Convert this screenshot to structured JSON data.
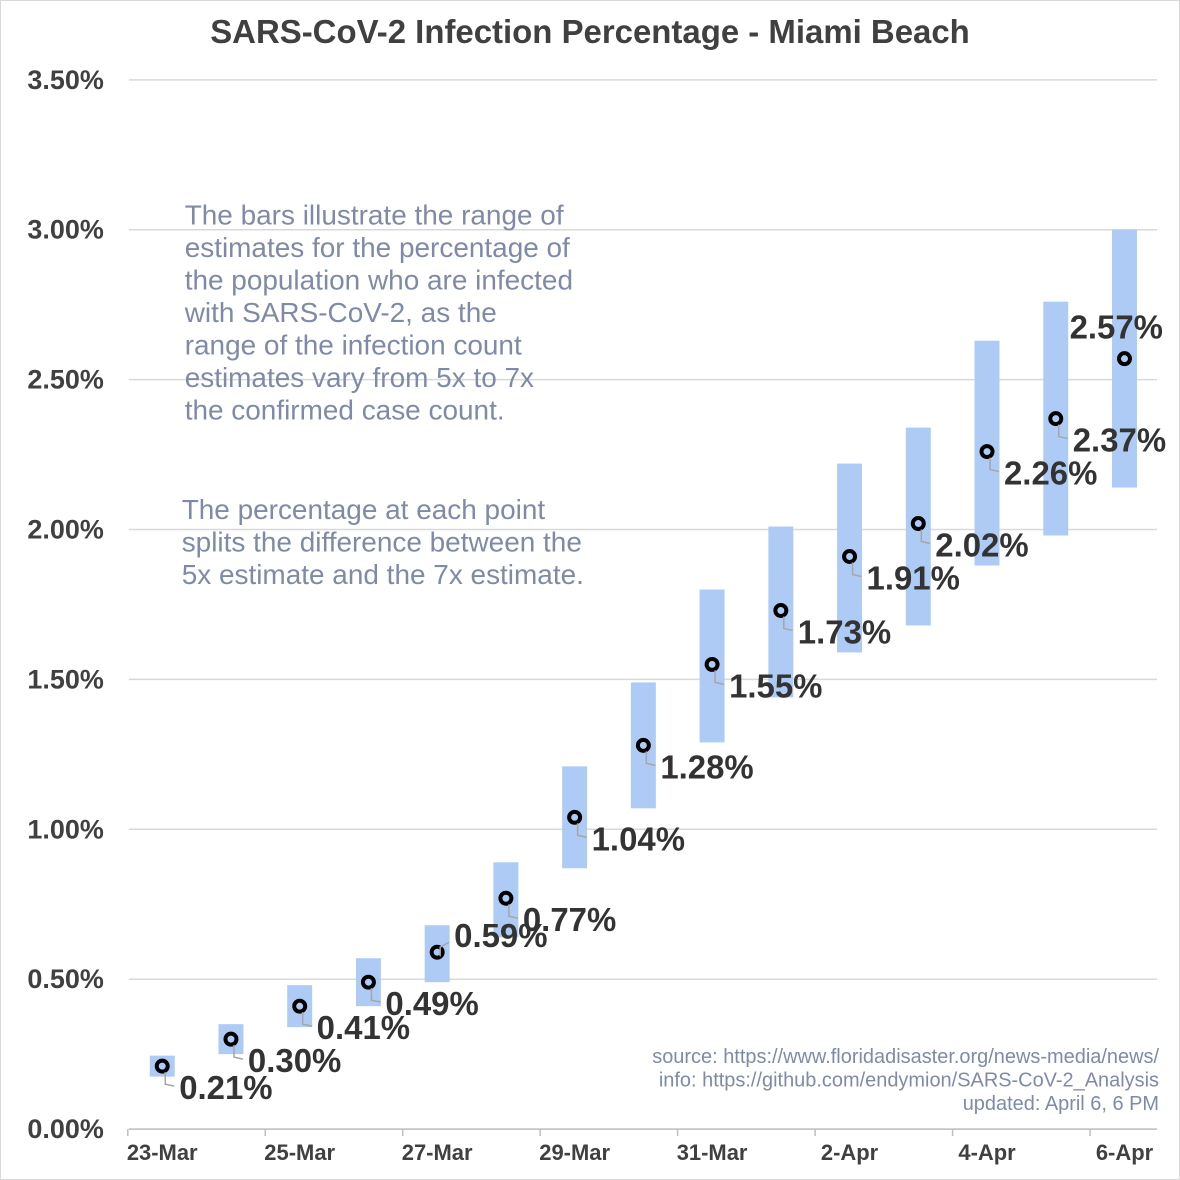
{
  "chart_data": {
    "type": "bar",
    "title": "SARS-CoV-2 Infection Percentage - Miami Beach",
    "xlabel": "",
    "ylabel": "",
    "ylim": [
      0,
      3.5
    ],
    "y_tick_labels": [
      "0.00%",
      "0.50%",
      "1.00%",
      "1.50%",
      "2.00%",
      "2.50%",
      "3.00%",
      "3.50%"
    ],
    "x_tick_labels": [
      "23-Mar",
      "25-Mar",
      "27-Mar",
      "29-Mar",
      "31-Mar",
      "2-Apr",
      "4-Apr",
      "6-Apr"
    ],
    "grid": true,
    "dates": [
      "23-Mar",
      "24-Mar",
      "25-Mar",
      "26-Mar",
      "27-Mar",
      "28-Mar",
      "29-Mar",
      "30-Mar",
      "31-Mar",
      "1-Apr",
      "2-Apr",
      "3-Apr",
      "4-Apr",
      "5-Apr",
      "6-Apr"
    ],
    "range_low": [
      0.175,
      0.25,
      0.34,
      0.41,
      0.49,
      0.64,
      0.87,
      1.07,
      1.29,
      1.44,
      1.59,
      1.68,
      1.88,
      1.98,
      2.14
    ],
    "range_high": [
      0.245,
      0.35,
      0.48,
      0.57,
      0.68,
      0.89,
      1.21,
      1.49,
      1.8,
      2.01,
      2.22,
      2.34,
      2.63,
      2.76,
      3.0
    ],
    "values": [
      0.21,
      0.3,
      0.41,
      0.49,
      0.59,
      0.77,
      1.04,
      1.28,
      1.55,
      1.73,
      1.91,
      2.02,
      2.26,
      2.37,
      2.57
    ],
    "labels": [
      "0.21%",
      "0.30%",
      "0.41%",
      "0.49%",
      "0.59%",
      "0.77%",
      "1.04%",
      "1.28%",
      "1.55%",
      "1.73%",
      "1.91%",
      "2.02%",
      "2.26%",
      "2.37%",
      "2.57%"
    ],
    "annotations": {
      "note1": [
        "The bars illustrate the range of",
        "estimates for the percentage of",
        "the population who are infected",
        "with SARS-CoV-2, as the",
        "range of the infection count",
        "estimates vary from 5x to 7x",
        "the confirmed case count."
      ],
      "note2": [
        "The percentage at each point",
        "splits the difference between the",
        "5x estimate and the 7x estimate."
      ],
      "source": [
        "source: https://www.floridadisaster.org/news-media/news/",
        "info: https://github.com/endymion/SARS-CoV-2_Analysis",
        "updated: April 6, 6 PM"
      ]
    },
    "colors": {
      "bar": "#aecbf6",
      "grid": "#d9d9d9",
      "point": "#000000",
      "text": "#404040",
      "note": "#7f8ba6"
    }
  }
}
